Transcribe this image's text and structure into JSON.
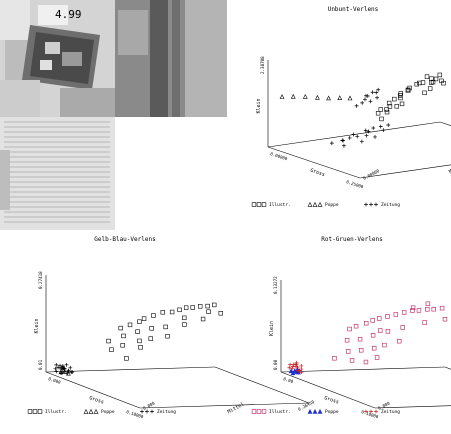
{
  "photo_panel": {
    "description": "grayscale collage of magazines and newspapers",
    "masthead": "4.99",
    "colors": {
      "light": "#d9d9d9",
      "mid": "#8c8c8c",
      "dark": "#3a3a3a"
    }
  },
  "charts": [
    {
      "title": "Unbunt-Verlens",
      "ylabel": "Klein",
      "xlabel": "Gross",
      "zlabel": "Mittel",
      "y_top_tick": "2.38708",
      "x_start_tick": "0.00000",
      "x_end_tick": "0.25000",
      "z_start_tick": "0.00000",
      "z_end_tick": "0.25000",
      "legend": [
        "Illustr.",
        "Poppe",
        "Zeitung"
      ]
    },
    {
      "title": "Gelb-Blau-Verlens",
      "ylabel": "Klein",
      "xlabel": "Gross",
      "zlabel": "Mittel",
      "y_top_tick": "0.27418",
      "y_bottom_tick": "0.01",
      "x_start_tick": "0.000",
      "x_end_tick": "0.18000",
      "z_start_tick": "0.000",
      "z_end_tick": "0.26450",
      "legend": [
        "Illustr.",
        "Poppe",
        "Zeitung"
      ]
    },
    {
      "title": "Rot-Gruen-Verlens",
      "ylabel": "Klein",
      "xlabel": "Gross",
      "zlabel": "Mittel",
      "y_top_tick": "0.13272",
      "y_bottom_tick": "0.00",
      "x_start_tick": "0.00",
      "x_end_tick": "0.18000",
      "z_start_tick": "0.000",
      "z_end_tick": "0.25000",
      "legend": [
        "Illustr.",
        "Poppe",
        "Zeitung"
      ]
    }
  ],
  "series_colors": {
    "mono": "#000000",
    "illustr_rg": "#c0185a",
    "poppe_rg": "#1e2ed2",
    "zeitung_rg": "#d01818"
  },
  "chart_data": [
    {
      "type": "scatter",
      "title": "Unbunt-Verlens",
      "x": "Gross",
      "y": "Klein",
      "z": "Mittel",
      "series": [
        {
          "name": "Illustr.",
          "marker": "square",
          "points": [
            [
              0.55,
              0.62,
              0.8
            ],
            [
              0.6,
              0.7,
              0.82
            ],
            [
              0.65,
              0.75,
              0.85
            ],
            [
              0.7,
              0.78,
              0.8
            ],
            [
              0.72,
              0.85,
              0.9
            ],
            [
              0.75,
              0.8,
              0.75
            ],
            [
              0.78,
              0.88,
              0.88
            ],
            [
              0.8,
              0.92,
              0.95
            ],
            [
              0.82,
              0.86,
              0.7
            ],
            [
              0.85,
              0.9,
              0.9
            ],
            [
              0.88,
              0.95,
              0.92
            ],
            [
              0.9,
              0.82,
              0.78
            ],
            [
              0.62,
              0.55,
              0.65
            ],
            [
              0.68,
              0.6,
              0.7
            ],
            [
              0.7,
              0.66,
              0.6
            ],
            [
              0.74,
              0.72,
              0.68
            ],
            [
              0.76,
              0.65,
              0.55
            ],
            [
              0.8,
              0.78,
              0.62
            ],
            [
              0.84,
              0.7,
              0.6
            ],
            [
              0.86,
              0.98,
              0.98
            ],
            [
              0.9,
              0.9,
              0.98
            ],
            [
              0.92,
              0.94,
              0.85
            ],
            [
              0.94,
              0.88,
              0.8
            ],
            [
              0.58,
              0.5,
              0.6
            ],
            [
              0.66,
              0.58,
              0.55
            ],
            [
              0.72,
              0.5,
              0.5
            ],
            [
              0.78,
              0.6,
              0.5
            ],
            [
              0.64,
              0.8,
              0.95
            ],
            [
              0.7,
              0.9,
              1.0
            ],
            [
              0.96,
              0.96,
              0.9
            ]
          ]
        },
        {
          "name": "Poppe",
          "marker": "triangle",
          "points": [
            [
              0.05,
              0.58,
              0.1
            ],
            [
              0.12,
              0.6,
              0.15
            ],
            [
              0.2,
              0.62,
              0.2
            ],
            [
              0.28,
              0.63,
              0.25
            ],
            [
              0.35,
              0.64,
              0.3
            ],
            [
              0.42,
              0.66,
              0.35
            ],
            [
              0.48,
              0.67,
              0.4
            ]
          ]
        },
        {
          "name": "Zeitung",
          "marker": "plus",
          "points": [
            [
              0.5,
              0.68,
              0.55
            ],
            [
              0.52,
              0.72,
              0.6
            ],
            [
              0.55,
              0.7,
              0.52
            ],
            [
              0.58,
              0.74,
              0.58
            ],
            [
              0.6,
              0.66,
              0.5
            ],
            [
              0.53,
              0.62,
              0.48
            ],
            [
              0.56,
              0.76,
              0.62
            ],
            [
              0.62,
              0.7,
              0.55
            ],
            [
              0.5,
              0.58,
              0.45
            ],
            [
              0.54,
              0.66,
              0.5
            ],
            [
              0.2,
              0.05,
              0.6
            ],
            [
              0.22,
              0.08,
              0.65
            ],
            [
              0.25,
              0.1,
              0.7
            ],
            [
              0.28,
              0.05,
              0.72
            ],
            [
              0.3,
              0.12,
              0.75
            ],
            [
              0.24,
              0.15,
              0.8
            ],
            [
              0.27,
              0.18,
              0.85
            ],
            [
              0.3,
              0.2,
              0.9
            ],
            [
              0.32,
              0.1,
              0.82
            ],
            [
              0.26,
              0.02,
              0.55
            ],
            [
              0.18,
              0.03,
              0.5
            ],
            [
              0.23,
              0.12,
              0.68
            ],
            [
              0.29,
              0.16,
              0.78
            ],
            [
              0.33,
              0.22,
              0.95
            ],
            [
              0.21,
              0.06,
              0.58
            ],
            [
              0.35,
              0.18,
              0.88
            ]
          ]
        }
      ]
    },
    {
      "type": "scatter",
      "title": "Gelb-Blau-Verlens",
      "x": "Gross",
      "y": "Klein",
      "z": "Mittel",
      "series": [
        {
          "name": "Illustr.",
          "marker": "square",
          "points": [
            [
              0.3,
              0.55,
              0.5
            ],
            [
              0.35,
              0.6,
              0.55
            ],
            [
              0.4,
              0.65,
              0.6
            ],
            [
              0.45,
              0.7,
              0.6
            ],
            [
              0.5,
              0.75,
              0.65
            ],
            [
              0.55,
              0.8,
              0.7
            ],
            [
              0.6,
              0.82,
              0.75
            ],
            [
              0.65,
              0.86,
              0.78
            ],
            [
              0.7,
              0.9,
              0.8
            ],
            [
              0.75,
              0.92,
              0.82
            ],
            [
              0.8,
              0.95,
              0.85
            ],
            [
              0.85,
              0.97,
              0.88
            ],
            [
              0.9,
              1.0,
              0.9
            ],
            [
              0.38,
              0.5,
              0.45
            ],
            [
              0.48,
              0.58,
              0.5
            ],
            [
              0.58,
              0.65,
              0.55
            ],
            [
              0.68,
              0.7,
              0.6
            ],
            [
              0.42,
              0.42,
              0.4
            ],
            [
              0.52,
              0.5,
              0.48
            ],
            [
              0.62,
              0.56,
              0.5
            ],
            [
              0.72,
              0.62,
              0.58
            ],
            [
              0.78,
              0.76,
              0.7
            ],
            [
              0.88,
              0.85,
              0.8
            ],
            [
              0.35,
              0.35,
              0.35
            ],
            [
              0.46,
              0.3,
              0.4
            ],
            [
              0.56,
              0.45,
              0.45
            ],
            [
              0.82,
              0.9,
              0.92
            ],
            [
              0.92,
              0.92,
              0.95
            ],
            [
              0.66,
              0.78,
              0.82
            ],
            [
              0.25,
              0.4,
              0.42
            ]
          ]
        },
        {
          "name": "Poppe",
          "marker": "triangle",
          "points": [
            [
              0.06,
              0.02,
              0.1
            ],
            [
              0.08,
              0.03,
              0.12
            ],
            [
              0.1,
              0.02,
              0.14
            ]
          ]
        },
        {
          "name": "Zeitung",
          "marker": "plus",
          "points": [
            [
              0.05,
              0.05,
              0.05
            ],
            [
              0.08,
              0.06,
              0.08
            ],
            [
              0.1,
              0.04,
              0.1
            ],
            [
              0.12,
              0.07,
              0.06
            ],
            [
              0.06,
              0.08,
              0.12
            ],
            [
              0.09,
              0.09,
              0.09
            ],
            [
              0.11,
              0.05,
              0.13
            ],
            [
              0.14,
              0.06,
              0.1
            ],
            [
              0.07,
              0.03,
              0.04
            ],
            [
              0.13,
              0.08,
              0.07
            ],
            [
              0.04,
              0.06,
              0.09
            ],
            [
              0.15,
              0.05,
              0.12
            ],
            [
              0.1,
              0.1,
              0.05
            ],
            [
              0.12,
              0.03,
              0.11
            ],
            [
              0.08,
              0.1,
              0.14
            ],
            [
              0.16,
              0.07,
              0.08
            ],
            [
              0.05,
              0.09,
              0.06
            ],
            [
              0.11,
              0.08,
              0.15
            ],
            [
              0.14,
              0.09,
              0.05
            ],
            [
              0.09,
              0.02,
              0.07
            ],
            [
              0.06,
              0.05,
              0.14
            ],
            [
              0.13,
              0.04,
              0.04
            ],
            [
              0.17,
              0.06,
              0.11
            ],
            [
              0.07,
              0.07,
              0.1
            ]
          ]
        }
      ]
    },
    {
      "type": "scatter",
      "title": "Rot-Gruen-Verlens",
      "x": "Gross",
      "y": "Klein",
      "z": "Mittel",
      "series": [
        {
          "name": "Illustr.",
          "marker": "square",
          "points": [
            [
              0.25,
              0.55,
              0.5
            ],
            [
              0.3,
              0.6,
              0.52
            ],
            [
              0.35,
              0.65,
              0.58
            ],
            [
              0.4,
              0.7,
              0.6
            ],
            [
              0.45,
              0.74,
              0.62
            ],
            [
              0.5,
              0.78,
              0.66
            ],
            [
              0.55,
              0.82,
              0.7
            ],
            [
              0.6,
              0.86,
              0.74
            ],
            [
              0.65,
              0.9,
              0.78
            ],
            [
              0.7,
              0.92,
              0.8
            ],
            [
              0.75,
              0.95,
              0.84
            ],
            [
              0.8,
              0.97,
              0.86
            ],
            [
              0.85,
              1.0,
              0.9
            ],
            [
              0.3,
              0.45,
              0.42
            ],
            [
              0.4,
              0.5,
              0.46
            ],
            [
              0.5,
              0.58,
              0.5
            ],
            [
              0.6,
              0.66,
              0.56
            ],
            [
              0.7,
              0.74,
              0.62
            ],
            [
              0.35,
              0.35,
              0.38
            ],
            [
              0.45,
              0.4,
              0.42
            ],
            [
              0.55,
              0.46,
              0.46
            ],
            [
              0.62,
              0.52,
              0.5
            ],
            [
              0.72,
              0.6,
              0.56
            ],
            [
              0.42,
              0.28,
              0.35
            ],
            [
              0.52,
              0.3,
              0.4
            ],
            [
              0.6,
              0.38,
              0.44
            ],
            [
              0.28,
              0.25,
              0.3
            ],
            [
              0.78,
              0.82,
              0.78
            ],
            [
              0.9,
              0.9,
              0.88
            ],
            [
              0.58,
              0.9,
              0.86
            ],
            [
              0.68,
              0.98,
              0.92
            ],
            [
              0.48,
              0.62,
              0.6
            ]
          ]
        },
        {
          "name": "Poppe",
          "marker": "triangle",
          "points": [
            [
              0.05,
              0.03,
              0.06
            ],
            [
              0.07,
              0.04,
              0.08
            ],
            [
              0.09,
              0.03,
              0.1
            ],
            [
              0.06,
              0.05,
              0.12
            ],
            [
              0.08,
              0.02,
              0.05
            ],
            [
              0.1,
              0.04,
              0.07
            ]
          ]
        },
        {
          "name": "Zeitung",
          "marker": "plus",
          "points": [
            [
              0.04,
              0.06,
              0.05
            ],
            [
              0.06,
              0.08,
              0.07
            ],
            [
              0.08,
              0.07,
              0.04
            ],
            [
              0.1,
              0.09,
              0.08
            ],
            [
              0.12,
              0.06,
              0.06
            ],
            [
              0.05,
              0.1,
              0.09
            ],
            [
              0.07,
              0.11,
              0.1
            ],
            [
              0.09,
              0.05,
              0.11
            ],
            [
              0.11,
              0.1,
              0.05
            ],
            [
              0.13,
              0.08,
              0.09
            ],
            [
              0.03,
              0.09,
              0.07
            ],
            [
              0.14,
              0.05,
              0.08
            ],
            [
              0.06,
              0.12,
              0.11
            ],
            [
              0.1,
              0.12,
              0.06
            ],
            [
              0.08,
              0.04,
              0.12
            ],
            [
              0.12,
              0.11,
              0.1
            ]
          ]
        }
      ]
    }
  ]
}
